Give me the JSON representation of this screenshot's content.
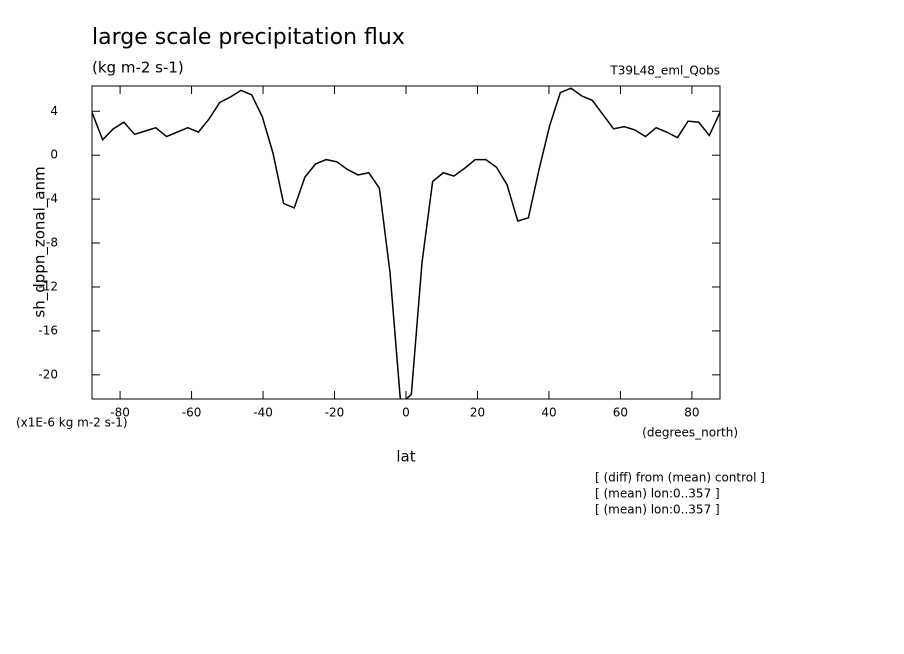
{
  "chart_data": {
    "type": "line",
    "title": "large scale precipitation flux",
    "subtitle": "(kg m-2 s-1)",
    "dataset": "T39L48_eml_Qobs",
    "y_label": "sh_dppn_zonal_anm",
    "y_units": "(x1E-6 kg m-2 s-1)",
    "x_label": "lat",
    "x_units": "(degrees_north)",
    "notes": [
      "[ (diff) from (mean) control ]",
      "[ (mean) lon:0..357 ]",
      "[ (mean) lon:0..357 ]"
    ],
    "x": [
      -87.86,
      -84.88,
      -81.9,
      -78.93,
      -75.95,
      -72.97,
      -69.99,
      -67.01,
      -64.03,
      -61.06,
      -58.08,
      -55.1,
      -52.12,
      -49.14,
      -46.16,
      -43.19,
      -40.21,
      -37.23,
      -34.25,
      -31.27,
      -28.29,
      -25.32,
      -22.34,
      -19.36,
      -16.38,
      -13.4,
      -10.42,
      -7.45,
      -4.47,
      -1.49,
      1.49,
      4.47,
      7.45,
      10.42,
      13.4,
      16.38,
      19.36,
      22.34,
      25.32,
      28.29,
      31.27,
      34.25,
      37.23,
      40.21,
      43.19,
      46.16,
      49.14,
      52.12,
      55.1,
      58.08,
      61.06,
      64.03,
      67.01,
      69.99,
      72.97,
      75.95,
      78.93,
      81.9,
      84.88,
      87.86
    ],
    "series": [
      {
        "name": "sh_dppn_zonal_anm",
        "color": "#000000",
        "values": [
          3.9,
          1.4,
          2.4,
          3.0,
          1.9,
          2.2,
          2.5,
          1.7,
          2.1,
          2.5,
          2.1,
          3.3,
          4.8,
          5.3,
          5.9,
          5.5,
          3.5,
          0.2,
          -4.4,
          -4.8,
          -2.0,
          -0.8,
          -0.4,
          -0.6,
          -1.3,
          -1.8,
          -1.6,
          -3.0,
          -10.7,
          -22.6,
          -21.8,
          -9.8,
          -2.4,
          -1.6,
          -1.9,
          -1.2,
          -0.4,
          -0.4,
          -1.1,
          -2.7,
          -6.0,
          -5.7,
          -1.3,
          2.7,
          5.7,
          6.1,
          5.4,
          5.0,
          3.7,
          2.4,
          2.6,
          2.3,
          1.7,
          2.5,
          2.1,
          1.6,
          3.1,
          3.0,
          1.8,
          3.9
        ]
      }
    ],
    "xlim": [
      -87.86,
      87.86
    ],
    "ylim": [
      -22.2,
      6.3
    ],
    "xticks": [
      -80,
      -60,
      -40,
      -20,
      0,
      20,
      40,
      60,
      80
    ],
    "yticks": [
      4,
      0,
      -4,
      -8,
      -12,
      -16,
      -20
    ]
  }
}
